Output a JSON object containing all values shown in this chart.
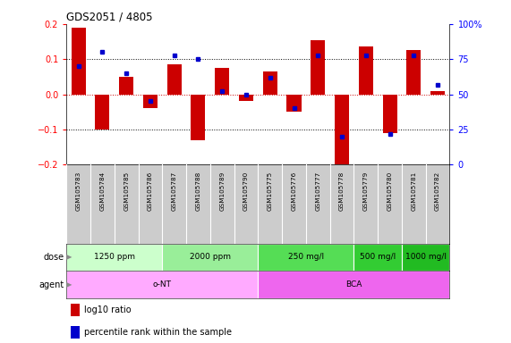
{
  "title": "GDS2051 / 4805",
  "samples": [
    "GSM105783",
    "GSM105784",
    "GSM105785",
    "GSM105786",
    "GSM105787",
    "GSM105788",
    "GSM105789",
    "GSM105790",
    "GSM105775",
    "GSM105776",
    "GSM105777",
    "GSM105778",
    "GSM105779",
    "GSM105780",
    "GSM105781",
    "GSM105782"
  ],
  "log10_ratio": [
    0.19,
    -0.1,
    0.05,
    -0.04,
    0.085,
    -0.13,
    0.075,
    -0.02,
    0.065,
    -0.05,
    0.155,
    -0.2,
    0.135,
    -0.11,
    0.125,
    0.01
  ],
  "percentile": [
    70,
    80,
    65,
    45,
    78,
    75,
    52,
    50,
    62,
    40,
    78,
    20,
    78,
    22,
    78,
    57
  ],
  "ylim": [
    -0.2,
    0.2
  ],
  "yticks_left": [
    -0.2,
    -0.1,
    0.0,
    0.1,
    0.2
  ],
  "yticks_right": [
    0,
    25,
    50,
    75,
    100
  ],
  "bar_color": "#CC0000",
  "dot_color": "#0000CC",
  "background_color": "#ffffff",
  "sample_bg": "#cccccc",
  "dose_groups": [
    {
      "label": "1250 ppm",
      "start": 0,
      "end": 4,
      "color": "#ccffcc"
    },
    {
      "label": "2000 ppm",
      "start": 4,
      "end": 8,
      "color": "#99ee99"
    },
    {
      "label": "250 mg/l",
      "start": 8,
      "end": 12,
      "color": "#55dd55"
    },
    {
      "label": "500 mg/l",
      "start": 12,
      "end": 14,
      "color": "#33cc33"
    },
    {
      "label": "1000 mg/l",
      "start": 14,
      "end": 16,
      "color": "#22bb22"
    }
  ],
  "agent_groups": [
    {
      "label": "o-NT",
      "start": 0,
      "end": 8,
      "color": "#ffaaff"
    },
    {
      "label": "BCA",
      "start": 8,
      "end": 16,
      "color": "#ee66ee"
    }
  ],
  "legend_bar_label": "log10 ratio",
  "legend_dot_label": "percentile rank within the sample"
}
